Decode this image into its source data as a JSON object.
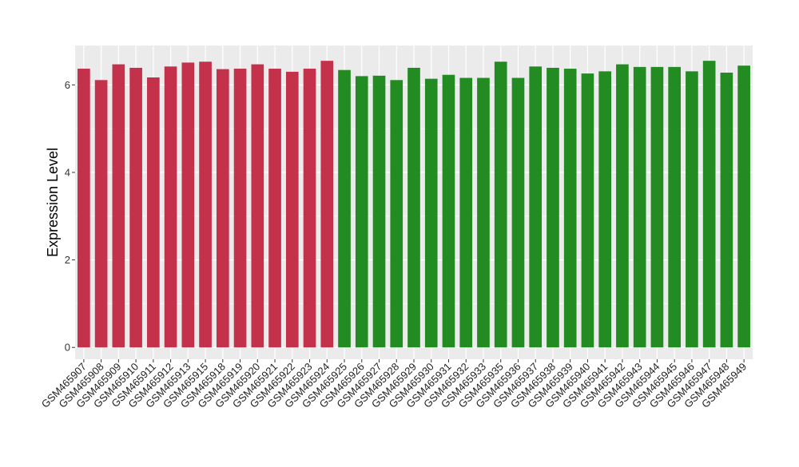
{
  "colors": {
    "group_a": "#C3314B",
    "group_b": "#228B22",
    "panel_bg": "#EBEBEB",
    "grid": "#FFFFFF",
    "text": "#000000"
  },
  "chart_data": {
    "type": "bar",
    "title": "",
    "xlabel": "",
    "ylabel": "Expression Level",
    "ylim": [
      -0.27,
      6.9
    ],
    "yticks": [
      0,
      2,
      4,
      6
    ],
    "grid": true,
    "legend": "none",
    "categories": [
      "GSM465907",
      "GSM465908",
      "GSM465909",
      "GSM465910",
      "GSM465911",
      "GSM465912",
      "GSM465913",
      "GSM465915",
      "GSM465918",
      "GSM465919",
      "GSM465920",
      "GSM465921",
      "GSM465922",
      "GSM465923",
      "GSM465924",
      "GSM465925",
      "GSM465926",
      "GSM465927",
      "GSM465928",
      "GSM465929",
      "GSM465930",
      "GSM465931",
      "GSM465932",
      "GSM465933",
      "GSM465935",
      "GSM465936",
      "GSM465937",
      "GSM465938",
      "GSM465939",
      "GSM465940",
      "GSM465941",
      "GSM465942",
      "GSM465943",
      "GSM465944",
      "GSM465945",
      "GSM465946",
      "GSM465947",
      "GSM465948",
      "GSM465949"
    ],
    "values": [
      6.37,
      6.11,
      6.47,
      6.39,
      6.17,
      6.42,
      6.51,
      6.53,
      6.36,
      6.37,
      6.47,
      6.37,
      6.3,
      6.37,
      6.55,
      6.34,
      6.2,
      6.21,
      6.11,
      6.39,
      6.14,
      6.23,
      6.16,
      6.16,
      6.53,
      6.16,
      6.42,
      6.39,
      6.37,
      6.26,
      6.31,
      6.47,
      6.41,
      6.41,
      6.41,
      6.31,
      6.55,
      6.28,
      6.44
    ],
    "groups": [
      "a",
      "a",
      "a",
      "a",
      "a",
      "a",
      "a",
      "a",
      "a",
      "a",
      "a",
      "a",
      "a",
      "a",
      "a",
      "b",
      "b",
      "b",
      "b",
      "b",
      "b",
      "b",
      "b",
      "b",
      "b",
      "b",
      "b",
      "b",
      "b",
      "b",
      "b",
      "b",
      "b",
      "b",
      "b",
      "b",
      "b",
      "b",
      "b"
    ]
  }
}
